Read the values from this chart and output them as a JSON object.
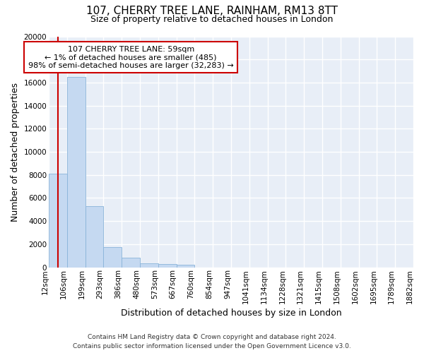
{
  "title": "107, CHERRY TREE LANE, RAINHAM, RM13 8TT",
  "subtitle": "Size of property relative to detached houses in London",
  "xlabel": "Distribution of detached houses by size in London",
  "ylabel": "Number of detached properties",
  "bar_values": [
    8100,
    16500,
    5300,
    1750,
    800,
    350,
    270,
    200,
    0,
    0,
    0,
    0,
    0,
    0,
    0,
    0,
    0,
    0,
    0,
    0
  ],
  "categories": [
    "12sqm",
    "106sqm",
    "199sqm",
    "293sqm",
    "386sqm",
    "480sqm",
    "573sqm",
    "667sqm",
    "760sqm",
    "854sqm",
    "947sqm",
    "1041sqm",
    "1134sqm",
    "1228sqm",
    "1321sqm",
    "1415sqm",
    "1508sqm",
    "1602sqm",
    "1695sqm",
    "1789sqm",
    "1882sqm"
  ],
  "bar_color": "#c5d9f1",
  "bar_edge_color": "#8ab4d9",
  "annotation_text_line1": "107 CHERRY TREE LANE: 59sqm",
  "annotation_text_line2": "← 1% of detached houses are smaller (485)",
  "annotation_text_line3": "98% of semi-detached houses are larger (32,283) →",
  "annotation_box_facecolor": "#ffffff",
  "annotation_box_edgecolor": "#cc0000",
  "vertical_line_color": "#cc0000",
  "vertical_line_x": 0.5,
  "ylim": [
    0,
    20000
  ],
  "yticks": [
    0,
    2000,
    4000,
    6000,
    8000,
    10000,
    12000,
    14000,
    16000,
    18000,
    20000
  ],
  "footer_line1": "Contains HM Land Registry data © Crown copyright and database right 2024.",
  "footer_line2": "Contains public sector information licensed under the Open Government Licence v3.0.",
  "figure_facecolor": "#ffffff",
  "plot_facecolor": "#e8eef7",
  "grid_color": "#ffffff",
  "title_fontsize": 11,
  "subtitle_fontsize": 9,
  "axis_label_fontsize": 9,
  "tick_fontsize": 7.5,
  "annotation_fontsize": 8,
  "footer_fontsize": 6.5
}
